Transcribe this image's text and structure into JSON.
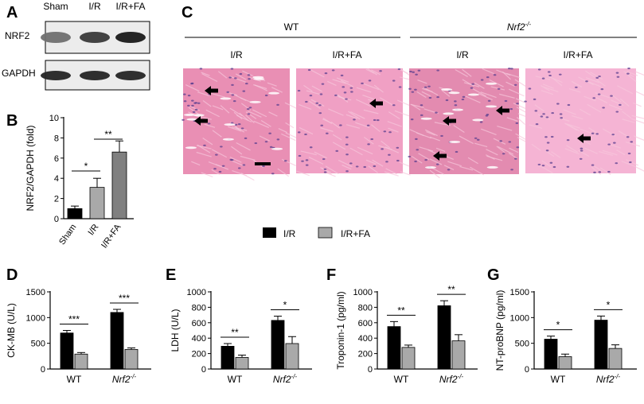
{
  "panels": {
    "A": {
      "letter": "A",
      "lanes": [
        "Sham",
        "I/R",
        "I/R+FA"
      ],
      "rows": [
        {
          "label": "NRF2",
          "intensity": [
            0.55,
            0.8,
            0.95
          ]
        },
        {
          "label": "GAPDH",
          "intensity": [
            0.9,
            0.9,
            0.9
          ]
        }
      ]
    },
    "C": {
      "letter": "C",
      "groups": [
        {
          "label": "WT",
          "italic": false
        },
        {
          "label": "Nrf2",
          "sup": "-/-",
          "italic": true
        }
      ],
      "conditions": [
        "I/R",
        "I/R+FA",
        "I/R",
        "I/R+FA"
      ],
      "images": [
        {
          "name": "wt-ir-histology",
          "base": "#e98fb4",
          "arrows": 3
        },
        {
          "name": "wt-irfa-histology",
          "base": "#f0a0c4",
          "arrows": 1
        },
        {
          "name": "nrf2-ir-histology",
          "base": "#e38bb0",
          "arrows": 3
        },
        {
          "name": "nrf2-irfa-histology",
          "base": "#f5b4d4",
          "arrows": 1
        }
      ]
    },
    "legend": {
      "items": [
        {
          "label": "I/R",
          "color": "#000000"
        },
        {
          "label": "I/R+FA",
          "color": "#a9a9a9"
        }
      ]
    }
  },
  "chart_data": [
    {
      "panel": "B",
      "type": "bar",
      "ylabel": "NRF2/GAPDH (fold)",
      "categories": [
        "Sham",
        "I/R",
        "I/R+FA"
      ],
      "values": [
        1.0,
        3.1,
        6.6
      ],
      "errors": [
        0.25,
        0.9,
        1.1
      ],
      "colors": [
        "#000000",
        "#a9a9a9",
        "#808080"
      ],
      "ylim": [
        0,
        10
      ],
      "yticks": [
        0,
        2,
        4,
        6,
        8,
        10
      ],
      "significance": [
        {
          "from": 0,
          "to": 1,
          "label": "*"
        },
        {
          "from": 1,
          "to": 2,
          "label": "**"
        }
      ]
    },
    {
      "panel": "D",
      "type": "bar",
      "ylabel": "CK-MB (U/L)",
      "categories": [
        "WT",
        "Nrf2-/-"
      ],
      "series": [
        {
          "name": "I/R",
          "values": [
            700,
            1100
          ],
          "errors": [
            50,
            60
          ]
        },
        {
          "name": "I/R+FA",
          "values": [
            290,
            380
          ],
          "errors": [
            30,
            30
          ]
        }
      ],
      "ylim": [
        0,
        1500
      ],
      "yticks": [
        0,
        500,
        1000,
        1500
      ],
      "significance": [
        "***",
        "***"
      ]
    },
    {
      "panel": "E",
      "type": "bar",
      "ylabel": "LDH (U/L)",
      "categories": [
        "WT",
        "Nrf2-/-"
      ],
      "series": [
        {
          "name": "I/R",
          "values": [
            295,
            630
          ],
          "errors": [
            35,
            55
          ]
        },
        {
          "name": "I/R+FA",
          "values": [
            150,
            330
          ],
          "errors": [
            30,
            90
          ]
        }
      ],
      "ylim": [
        0,
        1000
      ],
      "yticks": [
        0,
        200,
        400,
        600,
        800,
        1000
      ],
      "significance": [
        "**",
        "*"
      ]
    },
    {
      "panel": "F",
      "type": "bar",
      "ylabel": "Troponin-1 (pg/ml)",
      "categories": [
        "WT",
        "Nrf2-/-"
      ],
      "series": [
        {
          "name": "I/R",
          "values": [
            550,
            820
          ],
          "errors": [
            65,
            65
          ]
        },
        {
          "name": "I/R+FA",
          "values": [
            280,
            365
          ],
          "errors": [
            30,
            80
          ]
        }
      ],
      "ylim": [
        0,
        1000
      ],
      "yticks": [
        0,
        200,
        400,
        600,
        800,
        1000
      ],
      "significance": [
        "**",
        "**"
      ]
    },
    {
      "panel": "G",
      "type": "bar",
      "ylabel": "NT-proBNP (pg/ml)",
      "categories": [
        "WT",
        "Nrf2-/-"
      ],
      "series": [
        {
          "name": "I/R",
          "values": [
            580,
            950
          ],
          "errors": [
            60,
            80
          ]
        },
        {
          "name": "I/R+FA",
          "values": [
            240,
            400
          ],
          "errors": [
            50,
            70
          ]
        }
      ],
      "ylim": [
        0,
        1500
      ],
      "yticks": [
        0,
        500,
        1000,
        1500
      ],
      "significance": [
        "*",
        "*"
      ]
    }
  ]
}
